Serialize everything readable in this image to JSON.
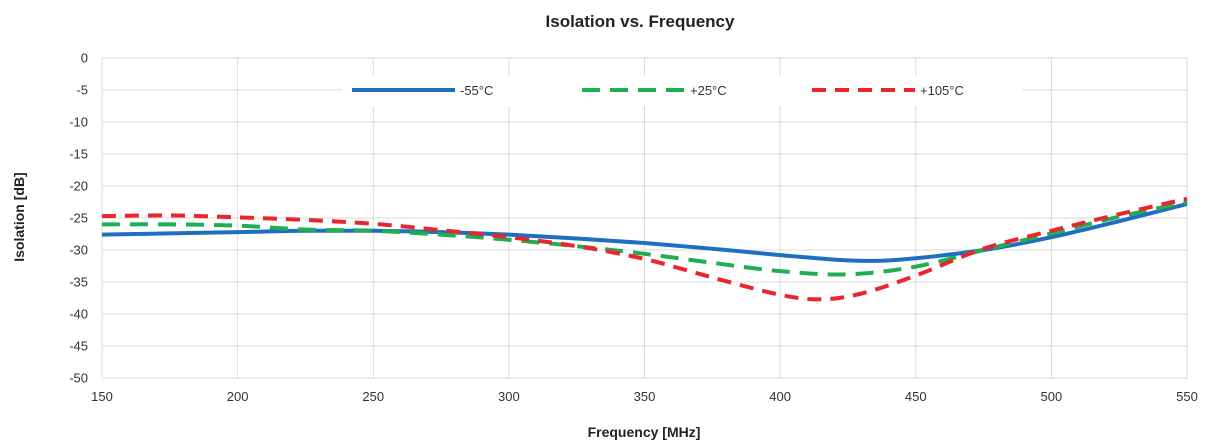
{
  "chart_data": {
    "type": "line",
    "title": "Isolation vs. Frequency",
    "xlabel": "Frequency [MHz]",
    "ylabel": "Isolation [dB]",
    "xlim": [
      150,
      550
    ],
    "ylim": [
      -50,
      0
    ],
    "xticks": [
      150,
      200,
      250,
      300,
      350,
      400,
      450,
      500,
      550
    ],
    "yticks": [
      0,
      -5,
      -10,
      -15,
      -20,
      -25,
      -30,
      -35,
      -40,
      -45,
      -50
    ],
    "grid": true,
    "legend_position": "top-center",
    "series": [
      {
        "name": "-55°C",
        "color": "#1f6fc0",
        "dash": "solid",
        "x": [
          150,
          175,
          200,
          225,
          250,
          275,
          300,
          325,
          350,
          375,
          400,
          420,
          435,
          450,
          475,
          500,
          525,
          550
        ],
        "y": [
          -27.6,
          -27.4,
          -27.2,
          -27.0,
          -27.0,
          -27.2,
          -27.6,
          -28.2,
          -28.9,
          -29.8,
          -30.8,
          -31.5,
          -31.7,
          -31.3,
          -30.0,
          -28.0,
          -25.5,
          -22.8
        ]
      },
      {
        "name": "+25°C",
        "color": "#1fae52",
        "dash": "dashed",
        "x": [
          150,
          175,
          200,
          225,
          250,
          275,
          300,
          325,
          350,
          375,
          400,
          425,
          450,
          475,
          500,
          525,
          550
        ],
        "y": [
          -26.0,
          -26.0,
          -26.2,
          -26.8,
          -27.0,
          -27.6,
          -28.4,
          -29.4,
          -30.6,
          -32.0,
          -33.3,
          -33.8,
          -32.6,
          -30.0,
          -27.4,
          -24.8,
          -22.5
        ]
      },
      {
        "name": "+105°C",
        "color": "#e8262c",
        "dash": "dashed",
        "x": [
          150,
          175,
          200,
          225,
          250,
          275,
          300,
          325,
          350,
          375,
          400,
          415,
          430,
          450,
          475,
          500,
          525,
          550
        ],
        "y": [
          -24.7,
          -24.6,
          -24.9,
          -25.3,
          -25.9,
          -26.9,
          -28.0,
          -29.4,
          -31.4,
          -34.3,
          -37.0,
          -37.7,
          -36.8,
          -34.0,
          -29.8,
          -27.0,
          -24.4,
          -22.0
        ]
      }
    ]
  }
}
